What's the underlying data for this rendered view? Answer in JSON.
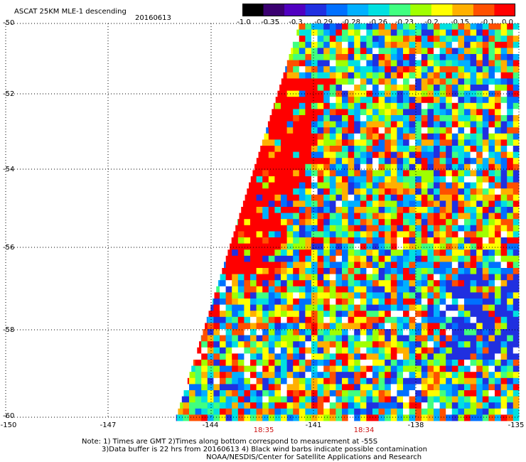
{
  "header": {
    "title": "ASCAT 25KM MLE-1 descending",
    "date": "20160613"
  },
  "colorbar": {
    "tick_labels": [
      "-1.0",
      "-0.35",
      "-0.3",
      "-0.29",
      "-0.28",
      "-0.26",
      "-0.23",
      "-0.2",
      "-0.15",
      "-0.1",
      "0.0"
    ],
    "colors": [
      "#000000",
      "#3a0070",
      "#5000c0",
      "#2030e0",
      "#0070ff",
      "#00b0ff",
      "#00e0e0",
      "#40ff80",
      "#a0ff00",
      "#ffff00",
      "#ffb000",
      "#ff5000",
      "#ff0000"
    ]
  },
  "axes": {
    "lat_labels": [
      "-50",
      "-52",
      "-54",
      "-56",
      "-58",
      "-60"
    ],
    "lon_labels": [
      "-150",
      "-147",
      "-144",
      "-141",
      "-138",
      "-135"
    ]
  },
  "times": [
    "18:35",
    "18:34"
  ],
  "note": {
    "line1": "Note: 1) Times are GMT 2)Times along bottom correspond to measurement at -55S",
    "line2": "3)Data buffer is 22 hrs from 20160613 4) Black wind barbs indicate possible contamination",
    "line3": "NOAA/NESDIS/Center for Satellite Applications and Research"
  }
}
